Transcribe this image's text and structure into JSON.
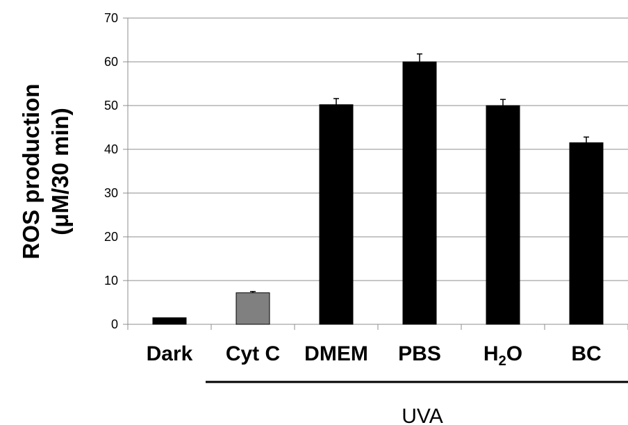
{
  "chart_data": {
    "type": "bar",
    "title": "",
    "xlabel": "",
    "ylabel_lines": [
      "ROS production",
      "(μM/30 min)"
    ],
    "ylim": [
      0,
      70
    ],
    "yticks": [
      0,
      10,
      20,
      30,
      40,
      50,
      60,
      70
    ],
    "grid": true,
    "categories": [
      {
        "label": "Dark",
        "sub": ""
      },
      {
        "label": "Cyt C",
        "sub": ""
      },
      {
        "label": "DMEM",
        "sub": ""
      },
      {
        "label": "PBS",
        "sub": ""
      },
      {
        "label": "H",
        "sub": "2",
        "suffix": "O"
      },
      {
        "label": "BC",
        "sub": ""
      }
    ],
    "values": [
      1.5,
      7.2,
      50.2,
      60.0,
      50.0,
      41.5
    ],
    "errors": [
      0.0,
      0.3,
      1.4,
      1.8,
      1.4,
      1.3
    ],
    "bar_colors": [
      "#000000",
      "#808080",
      "#000000",
      "#000000",
      "#000000",
      "#000000"
    ],
    "group_label": "UVA",
    "group_span": [
      1,
      5
    ]
  }
}
